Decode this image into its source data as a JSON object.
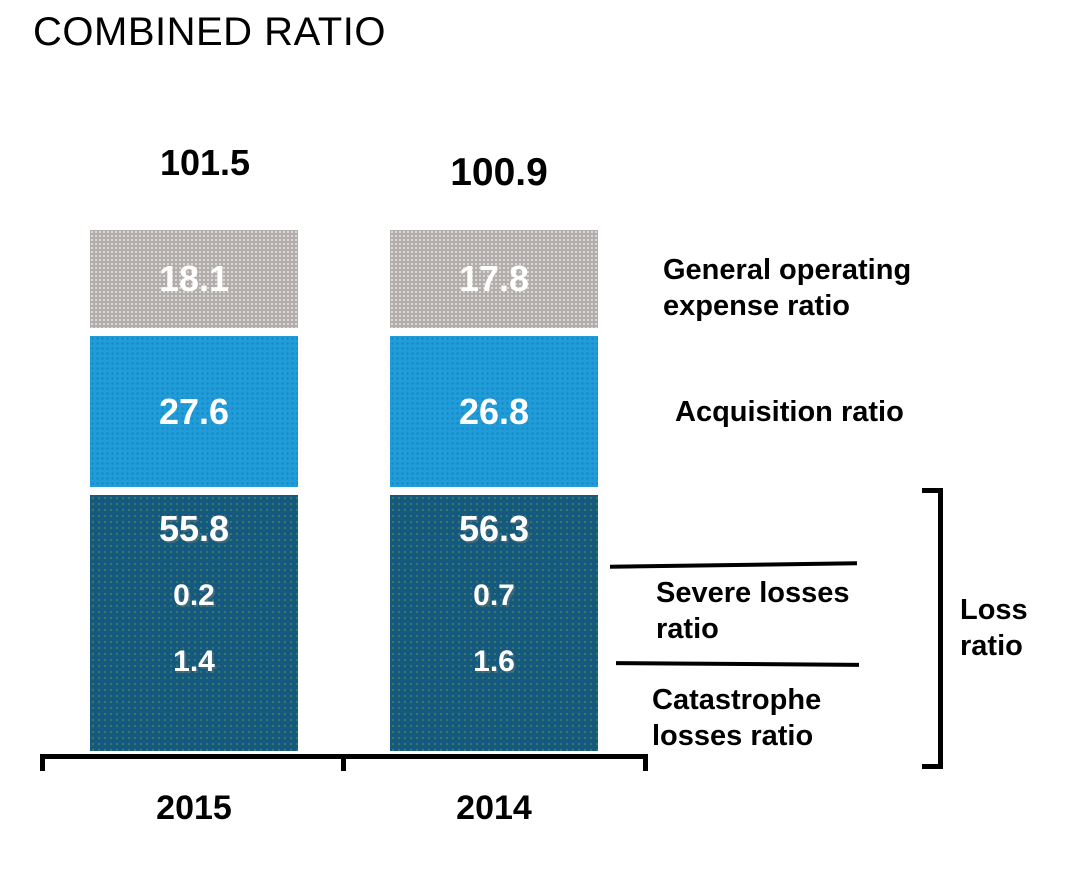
{
  "title": "COMBINED RATIO",
  "chart_data": {
    "type": "bar",
    "stacked": true,
    "title": "COMBINED RATIO",
    "categories": [
      "2015",
      "2014"
    ],
    "totals": [
      101.5,
      100.9
    ],
    "series": [
      {
        "name": "General operating expense ratio",
        "color": "#b2adaa",
        "values": [
          18.1,
          17.8
        ]
      },
      {
        "name": "Acquisition ratio",
        "color": "#209cd8",
        "values": [
          27.6,
          26.8
        ]
      },
      {
        "name": "Loss ratio",
        "color": "#16597f",
        "values": [
          55.8,
          56.3
        ]
      },
      {
        "name": "Severe losses ratio",
        "color": "#16597f",
        "values": [
          0.2,
          0.7
        ]
      },
      {
        "name": "Catastrophe losses ratio",
        "color": "#16597f",
        "values": [
          1.4,
          1.6
        ]
      }
    ],
    "grid": false,
    "legend_position": "right",
    "bars": [
      {
        "year": "2015",
        "total": "101.5",
        "segments": {
          "general": "18.1",
          "acquisition": "27.6",
          "loss": "55.8",
          "severe": "0.2",
          "catastrophe": "1.4"
        }
      },
      {
        "year": "2014",
        "total": "100.9",
        "segments": {
          "general": "17.8",
          "acquisition": "26.8",
          "loss": "56.3",
          "severe": "0.7",
          "catastrophe": "1.6"
        }
      }
    ]
  },
  "annotations": {
    "general": "General operating expense ratio",
    "acquisition": "Acquisition ratio",
    "severe": "Severe losses ratio",
    "catastrophe": "Catastrophe losses ratio",
    "loss_bracket": "Loss ratio"
  },
  "colors": {
    "general_gray": "#b2adaa",
    "acquisition_blue": "#209cd8",
    "loss_dark_blue": "#16597f",
    "bar_value_text": "#ffffff",
    "axis_black": "#000000"
  }
}
